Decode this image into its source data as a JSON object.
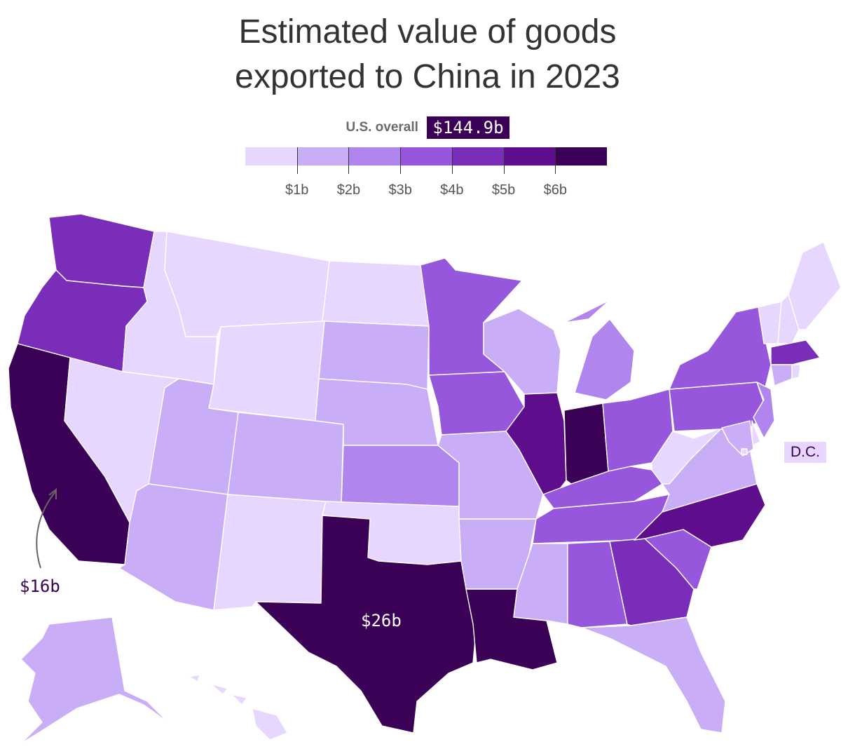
{
  "title": {
    "line1": "Estimated value of goods",
    "line2": "exported to China in 2023"
  },
  "overall": {
    "label": "U.S. overall",
    "value": "$144.9b"
  },
  "legend": {
    "colors": [
      "#e7d6fe",
      "#c9adf7",
      "#b085ee",
      "#9757dd",
      "#7a2db8",
      "#5e0d8c",
      "#3b0156"
    ],
    "ticks": [
      "$1b",
      "$2b",
      "$3b",
      "$4b",
      "$5b",
      "$6b"
    ]
  },
  "annotations": {
    "california": "$16b",
    "texas": "$26b",
    "dc": "D.C."
  },
  "states": [
    {
      "id": "WA",
      "level": 5
    },
    {
      "id": "OR",
      "level": 5
    },
    {
      "id": "CA",
      "level": 7
    },
    {
      "id": "ID",
      "level": 1
    },
    {
      "id": "NV",
      "level": 1
    },
    {
      "id": "MT",
      "level": 1
    },
    {
      "id": "WY",
      "level": 1
    },
    {
      "id": "UT",
      "level": 2
    },
    {
      "id": "AZ",
      "level": 2
    },
    {
      "id": "CO",
      "level": 2
    },
    {
      "id": "NM",
      "level": 1
    },
    {
      "id": "ND",
      "level": 1
    },
    {
      "id": "SD",
      "level": 2
    },
    {
      "id": "NE",
      "level": 2
    },
    {
      "id": "KS",
      "level": 3
    },
    {
      "id": "OK",
      "level": 1
    },
    {
      "id": "TX",
      "level": 7
    },
    {
      "id": "MN",
      "level": 4
    },
    {
      "id": "IA",
      "level": 4
    },
    {
      "id": "MO",
      "level": 2
    },
    {
      "id": "AR",
      "level": 2
    },
    {
      "id": "LA",
      "level": 7
    },
    {
      "id": "WI",
      "level": 2
    },
    {
      "id": "IL",
      "level": 6
    },
    {
      "id": "IN",
      "level": 7
    },
    {
      "id": "MI",
      "level": 3
    },
    {
      "id": "OH",
      "level": 4
    },
    {
      "id": "KY",
      "level": 4
    },
    {
      "id": "TN",
      "level": 4
    },
    {
      "id": "MS",
      "level": 2
    },
    {
      "id": "AL",
      "level": 4
    },
    {
      "id": "GA",
      "level": 5
    },
    {
      "id": "FL",
      "level": 2
    },
    {
      "id": "SC",
      "level": 4
    },
    {
      "id": "NC",
      "level": 6
    },
    {
      "id": "VA",
      "level": 2
    },
    {
      "id": "WV",
      "level": 1
    },
    {
      "id": "PA",
      "level": 4
    },
    {
      "id": "NY",
      "level": 4
    },
    {
      "id": "VT",
      "level": 1
    },
    {
      "id": "NH",
      "level": 1
    },
    {
      "id": "ME",
      "level": 1
    },
    {
      "id": "MA",
      "level": 5
    },
    {
      "id": "CT",
      "level": 2
    },
    {
      "id": "RI",
      "level": 1
    },
    {
      "id": "NJ",
      "level": 3
    },
    {
      "id": "DE",
      "level": 1
    },
    {
      "id": "MD",
      "level": 2
    },
    {
      "id": "DC",
      "level": 1
    },
    {
      "id": "AK",
      "level": 2
    },
    {
      "id": "HI",
      "level": 1
    }
  ]
}
